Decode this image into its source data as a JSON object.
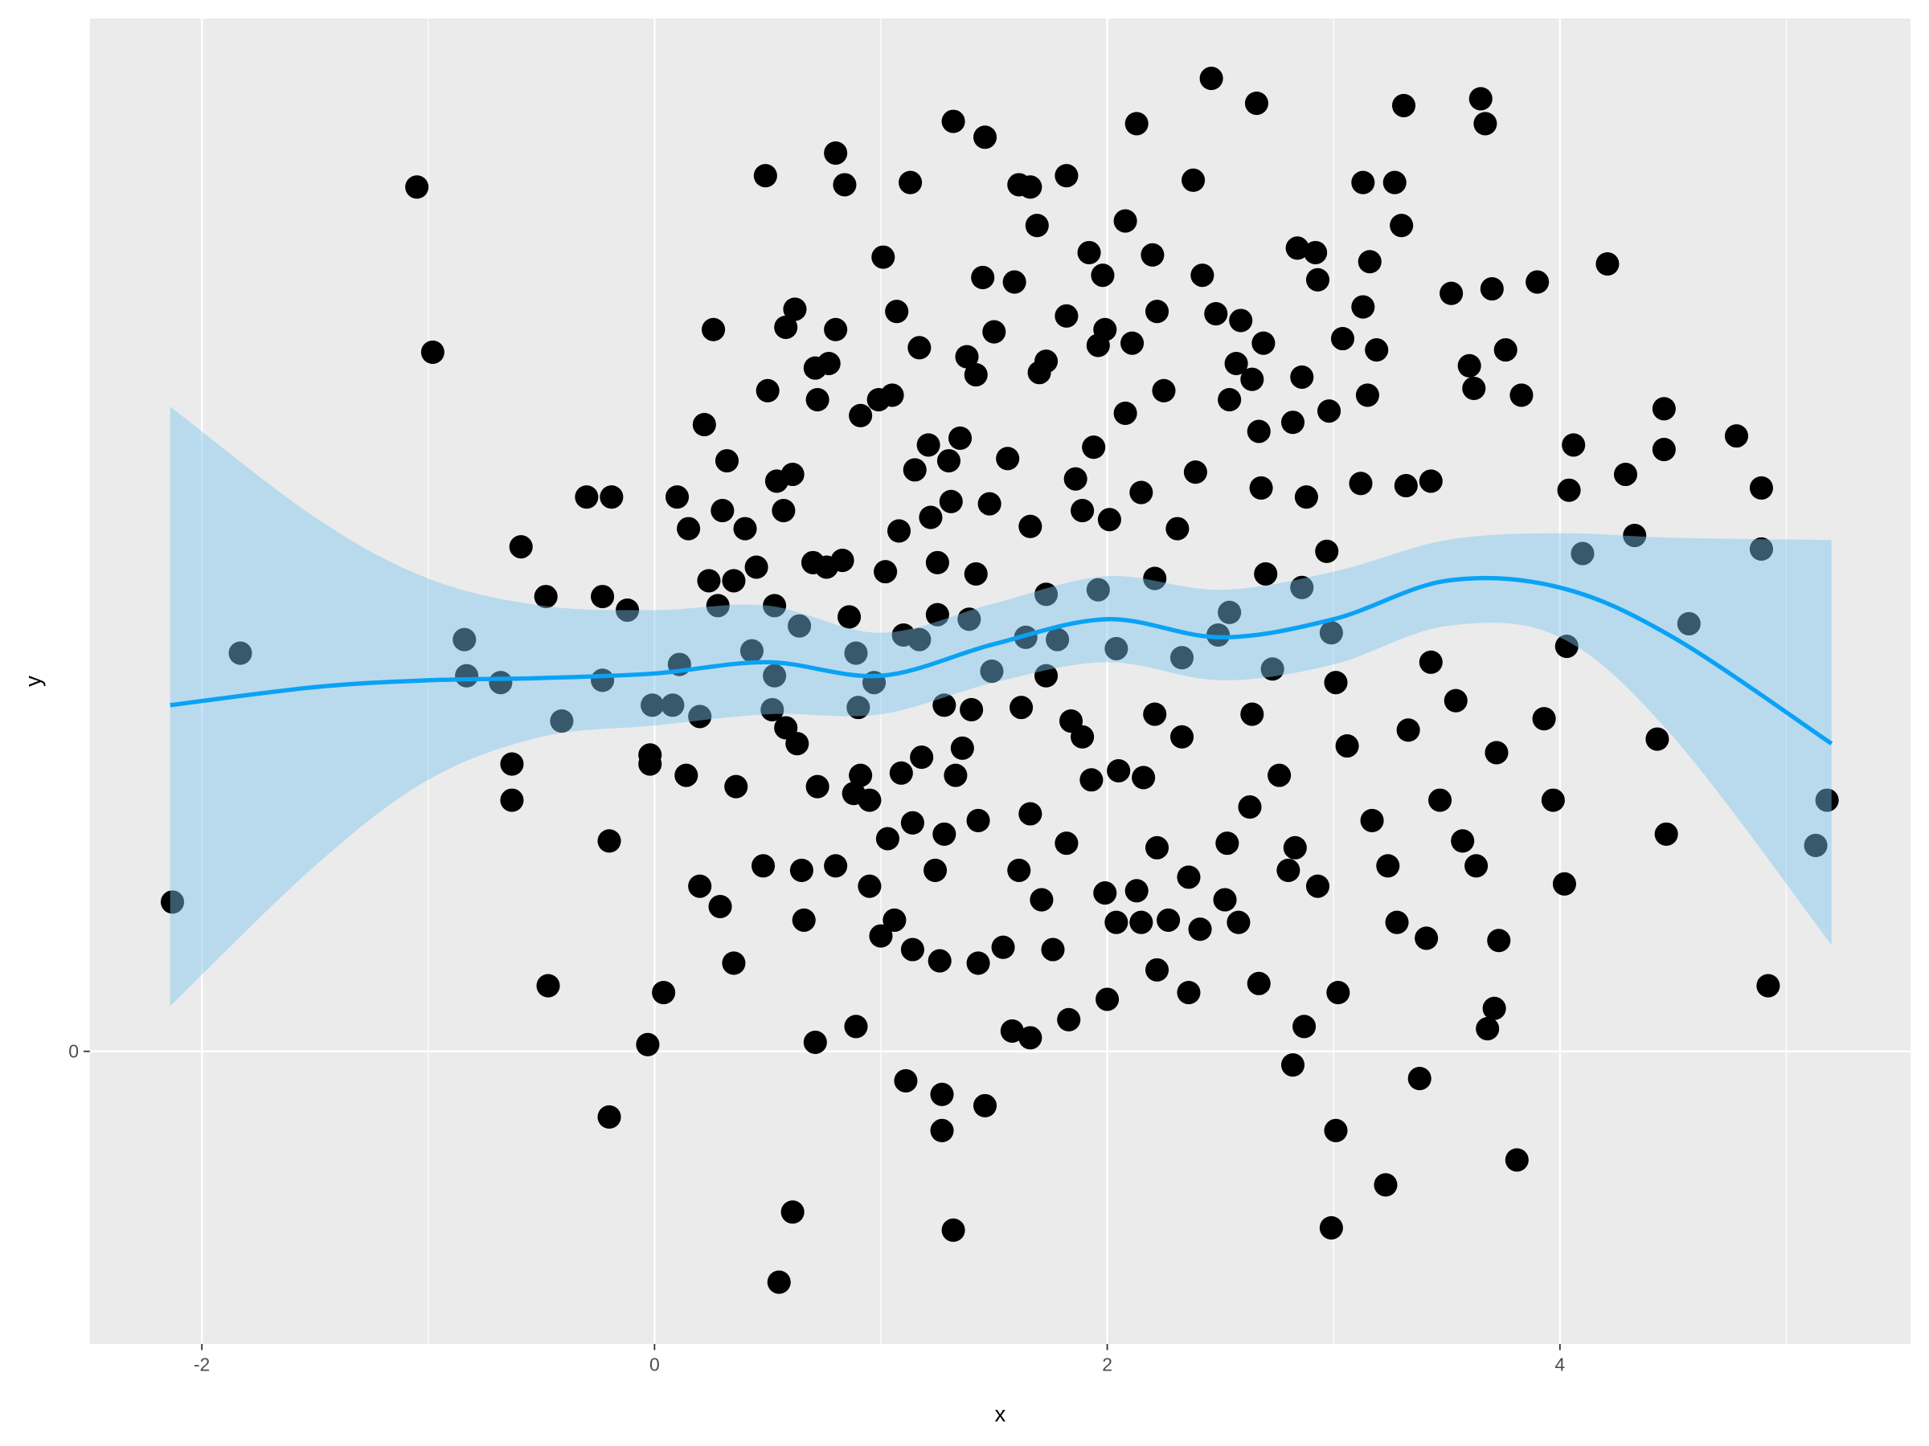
{
  "chart_data": {
    "type": "scatter",
    "x_label": "x",
    "y_label": "y",
    "color": "#000000",
    "x": [
      -2.13,
      -1.83,
      -1.05,
      -0.98,
      -0.84,
      -0.83,
      -0.68,
      -0.63,
      -0.63,
      -0.59,
      -0.48,
      -0.47,
      -0.41,
      -0.3,
      -0.23,
      -0.23,
      -0.2,
      -0.2,
      -0.19,
      -0.12,
      -0.03,
      -0.02,
      -0.02,
      -0.01,
      0.04,
      0.08,
      0.1,
      0.11,
      0.14,
      0.15,
      0.2,
      0.2,
      0.22,
      0.24,
      0.26,
      0.28,
      0.29,
      0.3,
      0.32,
      0.35,
      0.35,
      0.36,
      0.4,
      0.43,
      0.45,
      0.48,
      0.49,
      0.5,
      0.52,
      0.53,
      0.53,
      0.54,
      0.55,
      0.57,
      0.58,
      0.58,
      0.61,
      0.61,
      0.62,
      0.63,
      0.64,
      0.65,
      0.66,
      0.7,
      0.71,
      0.71,
      0.72,
      0.72,
      0.76,
      0.77,
      0.8,
      0.8,
      0.8,
      0.83,
      0.84,
      0.86,
      0.88,
      0.89,
      0.89,
      0.9,
      0.91,
      0.91,
      0.95,
      0.95,
      0.97,
      0.99,
      1.0,
      1.01,
      1.02,
      1.03,
      1.05,
      1.06,
      1.07,
      1.08,
      1.09,
      1.1,
      1.11,
      1.13,
      1.14,
      1.14,
      1.15,
      1.17,
      1.17,
      1.18,
      1.21,
      1.22,
      1.24,
      1.25,
      1.25,
      1.26,
      1.27,
      1.27,
      1.28,
      1.28,
      1.3,
      1.31,
      1.32,
      1.32,
      1.33,
      1.35,
      1.36,
      1.38,
      1.39,
      1.4,
      1.42,
      1.42,
      1.43,
      1.43,
      1.45,
      1.46,
      1.46,
      1.48,
      1.49,
      1.5,
      1.54,
      1.56,
      1.58,
      1.59,
      1.61,
      1.61,
      1.62,
      1.64,
      1.66,
      1.66,
      1.66,
      1.66,
      1.69,
      1.7,
      1.71,
      1.73,
      1.73,
      1.76,
      1.78,
      1.82,
      1.82,
      1.82,
      1.83,
      1.84,
      1.86,
      1.89,
      1.92,
      1.93,
      1.94,
      1.96,
      1.96,
      1.98,
      1.99,
      1.99,
      2.0,
      2.01,
      2.04,
      2.04,
      2.05,
      2.08,
      2.08,
      2.11,
      2.13,
      2.13,
      2.15,
      2.15,
      2.16,
      2.2,
      2.21,
      2.22,
      2.22,
      2.22,
      2.25,
      2.27,
      2.31,
      2.33,
      2.36,
      2.36,
      2.38,
      2.39,
      2.41,
      2.42,
      2.46,
      2.48,
      2.49,
      2.52,
      2.53,
      2.54,
      2.57,
      2.58,
      2.59,
      2.63,
      2.64,
      2.66,
      2.67,
      2.67,
      2.68,
      2.69,
      2.7,
      2.73,
      2.76,
      2.8,
      2.82,
      2.82,
      2.83,
      2.84,
      2.86,
      2.86,
      2.87,
      2.88,
      2.92,
      2.93,
      2.93,
      2.97,
      2.98,
      2.99,
      3.01,
      3.01,
      3.02,
      3.04,
      3.06,
      3.12,
      3.13,
      3.13,
      3.15,
      3.16,
      3.17,
      3.19,
      3.23,
      3.24,
      3.27,
      3.28,
      3.3,
      3.31,
      3.32,
      3.33,
      3.38,
      3.41,
      3.43,
      3.43,
      3.47,
      3.52,
      3.54,
      3.57,
      3.6,
      3.62,
      3.63,
      3.65,
      3.67,
      3.68,
      3.7,
      3.71,
      3.72,
      3.73,
      3.76,
      3.81,
      3.83,
      3.9,
      3.93,
      3.97,
      4.02,
      4.03,
      4.04,
      4.06,
      4.1,
      4.21,
      4.29,
      4.33,
      4.43,
      4.46,
      4.46,
      4.47,
      4.57,
      4.78,
      4.89,
      4.89,
      4.92,
      5.13,
      5.18,
      2.99,
      2.54,
      2.33,
      1.89,
      1.73,
      2.64,
      2.21
    ],
    "y": [
      0.66,
      1.76,
      3.82,
      3.09,
      1.82,
      1.66,
      1.63,
      1.27,
      1.11,
      2.23,
      2.01,
      0.29,
      1.46,
      2.45,
      2.01,
      1.64,
      0.93,
      -0.29,
      2.45,
      1.95,
      0.03,
      1.31,
      1.27,
      1.53,
      0.26,
      1.53,
      2.45,
      1.71,
      1.22,
      2.31,
      1.48,
      0.73,
      2.77,
      2.08,
      3.19,
      1.97,
      0.64,
      2.39,
      2.61,
      2.08,
      0.39,
      1.17,
      2.31,
      1.77,
      2.14,
      0.82,
      3.87,
      2.92,
      1.51,
      1.97,
      1.66,
      2.52,
      -1.02,
      2.39,
      3.2,
      1.43,
      -0.71,
      2.55,
      3.28,
      1.36,
      1.88,
      0.8,
      0.58,
      2.16,
      3.02,
      0.04,
      2.88,
      1.17,
      2.14,
      3.04,
      3.97,
      3.19,
      0.82,
      2.17,
      3.83,
      1.92,
      1.14,
      0.11,
      1.76,
      1.52,
      2.81,
      1.22,
      0.73,
      1.11,
      1.63,
      2.88,
      0.51,
      3.51,
      2.12,
      0.94,
      2.9,
      0.58,
      3.27,
      2.3,
      1.23,
      1.84,
      -0.13,
      3.84,
      1.01,
      0.45,
      2.57,
      1.82,
      3.11,
      1.3,
      2.68,
      2.36,
      0.8,
      2.16,
      1.93,
      0.4,
      -0.19,
      -0.35,
      1.53,
      0.96,
      2.61,
      2.43,
      -0.79,
      4.11,
      1.22,
      2.71,
      1.34,
      3.07,
      1.91,
      1.51,
      2.11,
      2.99,
      1.02,
      0.39,
      3.42,
      4.04,
      -0.24,
      2.42,
      1.68,
      3.18,
      0.46,
      2.62,
      0.09,
      3.4,
      0.8,
      3.83,
      1.52,
      1.83,
      2.32,
      1.05,
      0.06,
      3.82,
      3.65,
      3.0,
      0.67,
      3.05,
      2.02,
      0.45,
      1.82,
      3.87,
      3.25,
      0.92,
      0.14,
      1.46,
      2.53,
      2.39,
      3.53,
      1.2,
      2.67,
      3.12,
      2.04,
      3.43,
      3.19,
      0.7,
      0.23,
      2.35,
      0.57,
      1.78,
      1.24,
      3.67,
      2.82,
      3.13,
      4.1,
      0.71,
      0.57,
      2.47,
      1.21,
      3.52,
      1.49,
      3.27,
      0.9,
      0.36,
      2.92,
      0.58,
      2.31,
      1.74,
      0.26,
      0.77,
      3.85,
      2.56,
      0.54,
      3.43,
      4.3,
      3.26,
      1.84,
      0.67,
      0.92,
      2.88,
      3.04,
      0.57,
      3.23,
      1.08,
      2.97,
      4.19,
      0.3,
      2.74,
      2.49,
      3.13,
      2.11,
      1.69,
      1.22,
      0.8,
      -0.06,
      2.78,
      0.9,
      3.55,
      2.05,
      2.98,
      0.11,
      2.45,
      3.53,
      3.41,
      0.73,
      2.21,
      2.83,
      -0.78,
      -0.35,
      1.63,
      0.26,
      3.15,
      1.35,
      2.51,
      3.84,
      3.29,
      2.9,
      3.49,
      1.02,
      3.1,
      -0.59,
      0.82,
      3.84,
      0.57,
      3.65,
      4.18,
      2.5,
      1.42,
      -0.12,
      0.5,
      2.52,
      1.72,
      1.11,
      3.35,
      1.55,
      0.93,
      3.03,
      2.93,
      0.82,
      4.21,
      4.1,
      0.1,
      3.37,
      0.19,
      1.32,
      0.49,
      3.1,
      -0.48,
      2.9,
      3.4,
      1.47,
      1.11,
      0.74,
      1.79,
      2.48,
      2.68,
      2.2,
      3.48,
      2.55,
      2.28,
      1.38,
      2.84,
      2.66,
      0.96,
      1.89,
      2.72,
      2.49,
      2.22,
      0.29,
      0.91,
      1.11,
      1.85,
      1.94,
      1.39,
      1.39,
      1.66,
      1.49,
      2.09
    ],
    "smooth": {
      "color": "#0aa2f5",
      "fill": "#7cc6f0",
      "x": [
        -2.14,
        -1.5,
        -1,
        -0.5,
        0,
        0.5,
        1,
        1.5,
        2,
        2.5,
        3,
        3.5,
        4,
        4.5,
        5.2
      ],
      "y": [
        1.53,
        1.61,
        1.64,
        1.65,
        1.67,
        1.72,
        1.66,
        1.8,
        1.91,
        1.83,
        1.91,
        2.08,
        2.05,
        1.83,
        1.36
      ],
      "ymin": [
        0.2,
        0.82,
        1.2,
        1.39,
        1.44,
        1.49,
        1.49,
        1.63,
        1.72,
        1.64,
        1.71,
        1.88,
        1.83,
        1.39,
        0.47
      ],
      "ymax": [
        2.85,
        2.36,
        2.09,
        1.97,
        1.95,
        1.97,
        1.85,
        1.98,
        2.1,
        2.04,
        2.12,
        2.26,
        2.29,
        2.27,
        2.26
      ]
    },
    "xlim": [
      -2.495,
      5.549
    ],
    "ylim": [
      -1.293,
      4.565
    ],
    "xticks": [
      -2,
      0,
      2,
      4
    ],
    "yticks": [
      0
    ],
    "grid": true
  }
}
